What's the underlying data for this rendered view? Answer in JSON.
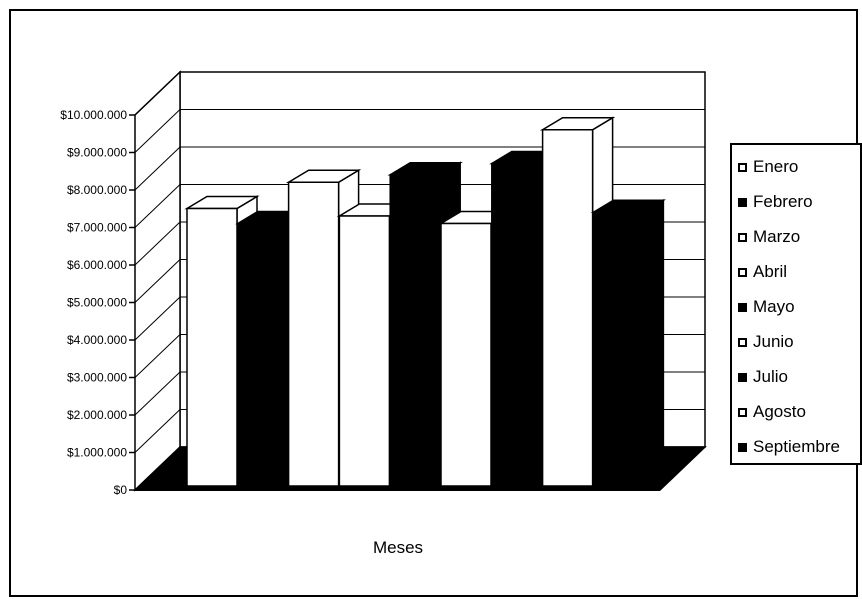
{
  "chart_data": {
    "type": "bar",
    "xlabel": "Meses",
    "ylim": [
      0,
      10000000
    ],
    "yticks": [
      "$0",
      "$1.000.000",
      "$2.000.000",
      "$3.000.000",
      "$4.000.000",
      "$5.000.000",
      "$6.000.000",
      "$7.000.000",
      "$8.000.000",
      "$9.000.000",
      "$10.000.000"
    ],
    "legend_position": "right",
    "grid": true,
    "series": [
      {
        "name": "Enero",
        "value": 7400000,
        "color": "#ffffff"
      },
      {
        "name": "Febrero",
        "value": 7000000,
        "color": "#000000"
      },
      {
        "name": "Marzo",
        "value": 8100000,
        "color": "#ffffff"
      },
      {
        "name": "Abril",
        "value": 7200000,
        "color": "#ffffff"
      },
      {
        "name": "Mayo",
        "value": 8300000,
        "color": "#000000"
      },
      {
        "name": "Junio",
        "value": 7000000,
        "color": "#ffffff"
      },
      {
        "name": "Julio",
        "value": 8600000,
        "color": "#000000"
      },
      {
        "name": "Agosto",
        "value": 9500000,
        "color": "#ffffff"
      },
      {
        "name": "Septiembre",
        "value": 7300000,
        "color": "#000000"
      }
    ]
  }
}
